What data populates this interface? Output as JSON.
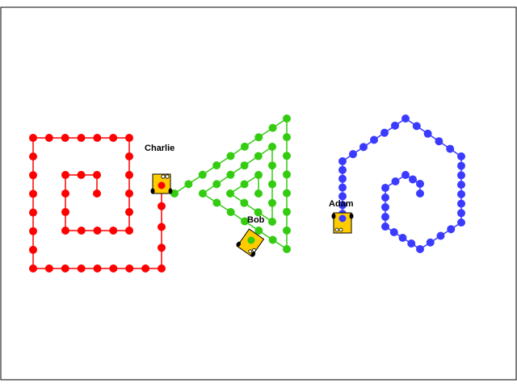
{
  "colors": {
    "red": "#ff0000",
    "green": "#33cc11",
    "blue": "#3b3bff",
    "robot_body": "#ffcc00",
    "frame": "#000000"
  },
  "robots": [
    {
      "name": "Charlie",
      "trail_color": "red",
      "icon": "robot-icon"
    },
    {
      "name": "Bob",
      "trail_color": "green",
      "icon": "robot-icon"
    },
    {
      "name": "Adam",
      "trail_color": "blue",
      "icon": "robot-icon"
    }
  ]
}
